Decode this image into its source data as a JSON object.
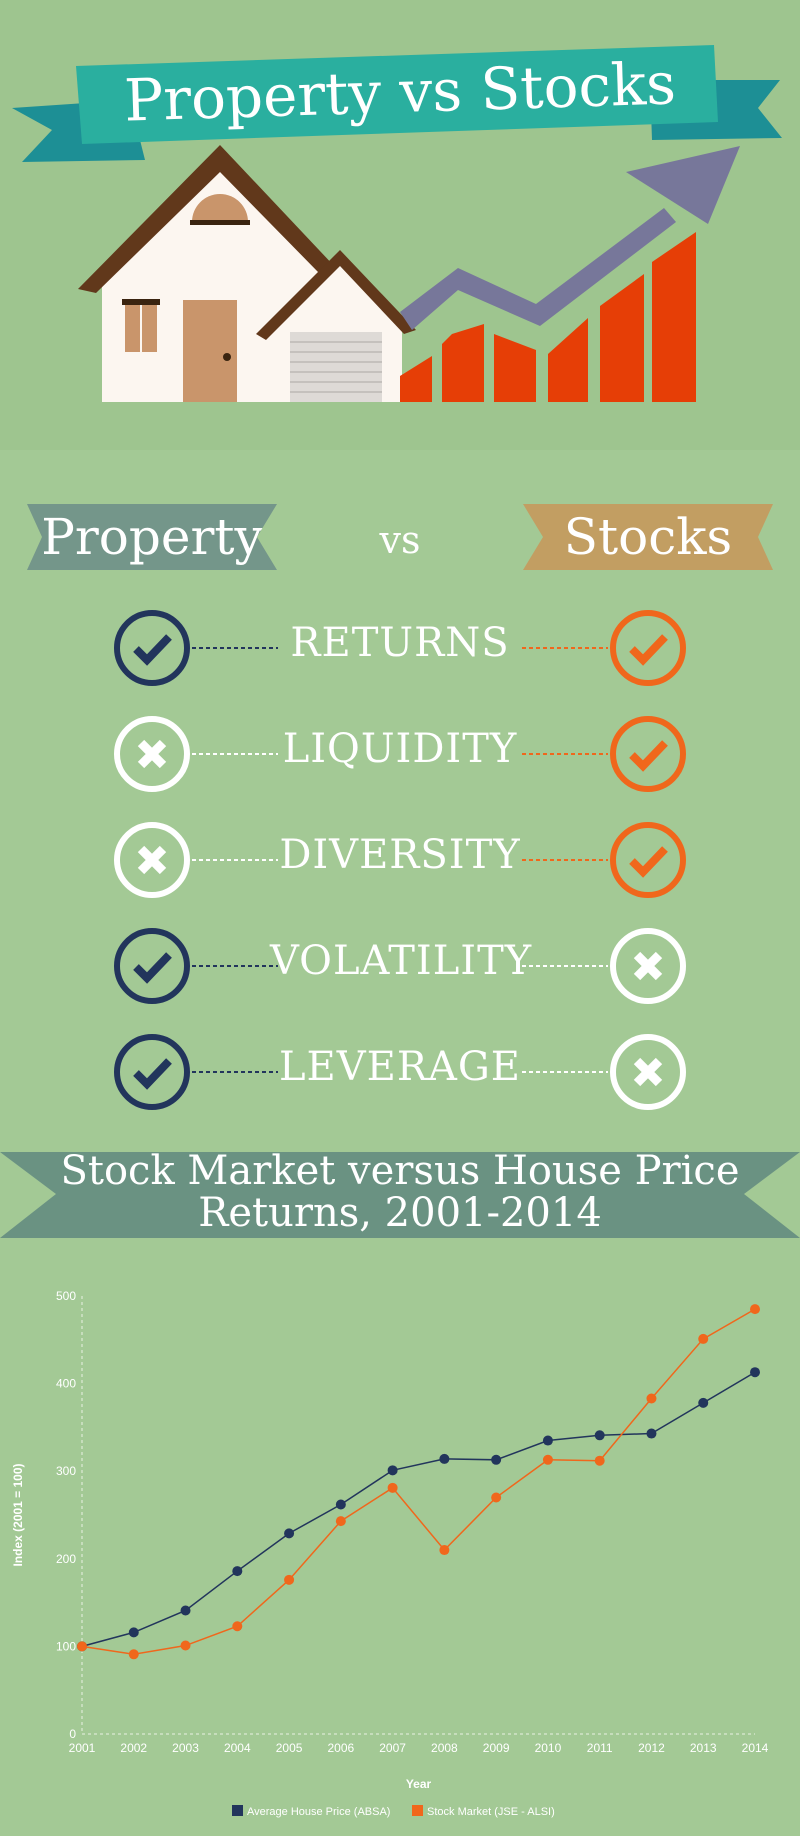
{
  "title": "Property vs Stocks",
  "comparison": {
    "left_label": "Property",
    "vs_label": "vs",
    "right_label": "Stocks",
    "rows": [
      {
        "label": "RETURNS",
        "property": "check",
        "stocks": "check"
      },
      {
        "label": "LIQUIDITY",
        "property": "cross",
        "stocks": "check"
      },
      {
        "label": "DIVERSITY",
        "property": "cross",
        "stocks": "check"
      },
      {
        "label": "VOLATILITY",
        "property": "check",
        "stocks": "cross"
      },
      {
        "label": "LEVERAGE",
        "property": "check",
        "stocks": "cross"
      }
    ]
  },
  "chart_section": {
    "title_line1": "Stock Market versus House Price",
    "title_line2": "Returns, 2001-2014"
  },
  "colors": {
    "background": "#a3c995",
    "banner_teal": "#2aaf9f",
    "property_blue": "#22355c",
    "stocks_orange": "#f0671c",
    "arrow_purple": "#77779a",
    "bars_red": "#e63e06"
  },
  "chart_data": {
    "type": "line",
    "title": "",
    "xlabel": "Year",
    "ylabel": "Index (2001 = 100)",
    "x": [
      2001,
      2002,
      2003,
      2004,
      2005,
      2006,
      2007,
      2008,
      2009,
      2010,
      2011,
      2012,
      2013,
      2014
    ],
    "ylim": [
      0,
      500
    ],
    "yticks": [
      0,
      100,
      200,
      300,
      400,
      500
    ],
    "grid": false,
    "legend": "bottom",
    "series": [
      {
        "name": "Average House Price (ABSA)",
        "color": "#22355c",
        "values": [
          100,
          116,
          141,
          186,
          229,
          262,
          301,
          314,
          313,
          335,
          341,
          343,
          378,
          413
        ]
      },
      {
        "name": "Stock Market (JSE - ALSI)",
        "color": "#f0671c",
        "values": [
          100,
          91,
          101,
          123,
          176,
          243,
          281,
          210,
          270,
          313,
          312,
          383,
          451,
          485
        ]
      }
    ]
  }
}
